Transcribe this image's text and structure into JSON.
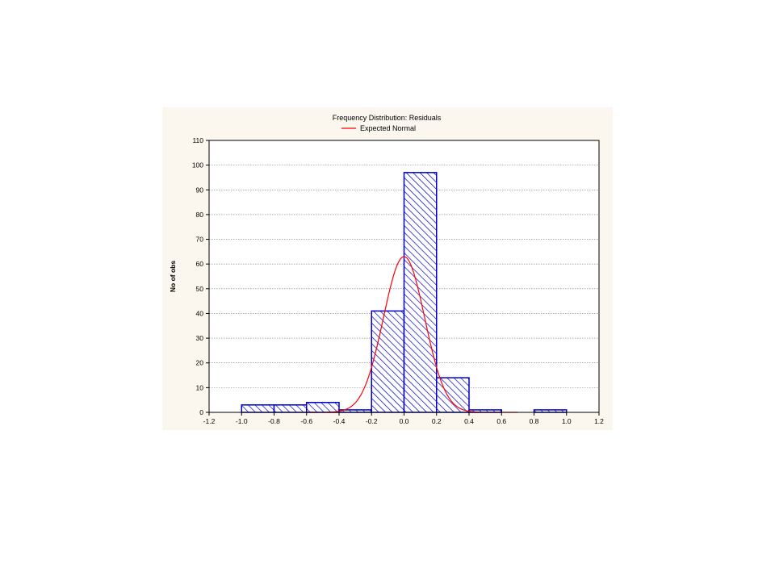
{
  "chart_data": {
    "type": "bar",
    "title": "Frequency Distribution: Residuals",
    "ylabel": "No of obs",
    "xlabel": "",
    "xlim": [
      -1.2,
      1.2
    ],
    "ylim": [
      0,
      110
    ],
    "xticks": [
      -1.2,
      -1.0,
      -0.8,
      -0.6,
      -0.4,
      -0.2,
      0.0,
      0.2,
      0.4,
      0.6,
      0.8,
      1.0,
      1.2
    ],
    "xtick_labels": [
      "-1.2",
      "-1.0",
      "-0.8",
      "-0.6",
      "-0.4",
      "-0.2",
      "0.0",
      "0.2",
      "0.4",
      "0.6",
      "0.8",
      "1.0",
      "1.2"
    ],
    "yticks": [
      0,
      10,
      20,
      30,
      40,
      50,
      60,
      70,
      80,
      90,
      100,
      110
    ],
    "ytick_labels": [
      "0",
      "10",
      "20",
      "30",
      "40",
      "50",
      "60",
      "70",
      "80",
      "90",
      "100",
      "110"
    ],
    "grid": true,
    "bins": [
      {
        "from": -1.0,
        "to": -0.8,
        "count": 3
      },
      {
        "from": -0.8,
        "to": -0.6,
        "count": 3
      },
      {
        "from": -0.6,
        "to": -0.4,
        "count": 4
      },
      {
        "from": -0.4,
        "to": -0.2,
        "count": 1
      },
      {
        "from": -0.2,
        "to": 0.0,
        "count": 41
      },
      {
        "from": 0.0,
        "to": 0.2,
        "count": 97
      },
      {
        "from": 0.2,
        "to": 0.4,
        "count": 14
      },
      {
        "from": 0.4,
        "to": 0.6,
        "count": 1
      },
      {
        "from": 0.6,
        "to": 0.8,
        "count": 0
      },
      {
        "from": 0.8,
        "to": 1.0,
        "count": 1
      }
    ],
    "expected_normal": {
      "name": "Expected Normal",
      "mean": 0.0,
      "peak": 63,
      "sd": 0.127
    },
    "legend_position": "top-center",
    "colors": {
      "bar_stroke": "#0000c8",
      "bar_hatch": "#0000c8",
      "bar_fill": "#ffffff",
      "curve": "#ff0000",
      "background": "#fbf7ee",
      "plot_bg": "#ffffff"
    }
  }
}
